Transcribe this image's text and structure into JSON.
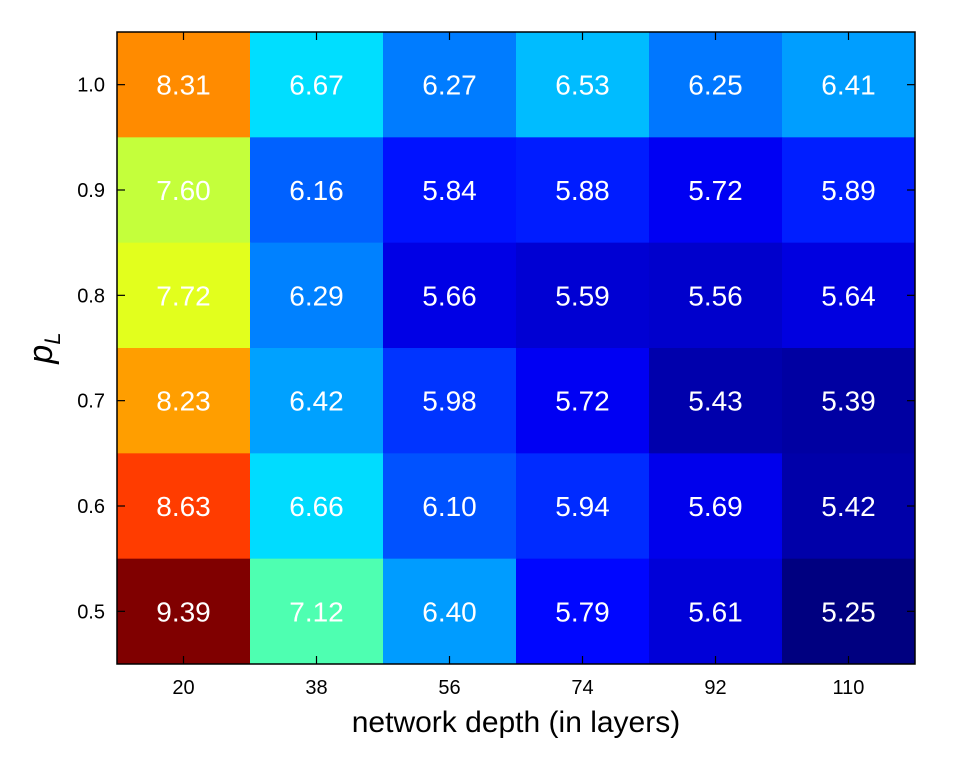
{
  "chart_data": {
    "type": "heatmap",
    "xlabel": "network depth (in layers)",
    "ylabel": {
      "main": "p",
      "subscript": "L"
    },
    "x_categories": [
      "20",
      "38",
      "56",
      "74",
      "92",
      "110"
    ],
    "y_categories": [
      "1.0",
      "0.9",
      "0.8",
      "0.7",
      "0.6",
      "0.5"
    ],
    "values": [
      [
        8.31,
        6.67,
        6.27,
        6.53,
        6.25,
        6.41
      ],
      [
        7.6,
        6.16,
        5.84,
        5.88,
        5.72,
        5.89
      ],
      [
        7.72,
        6.29,
        5.66,
        5.59,
        5.56,
        5.64
      ],
      [
        8.23,
        6.42,
        5.98,
        5.72,
        5.43,
        5.39
      ],
      [
        8.63,
        6.66,
        6.1,
        5.94,
        5.69,
        5.42
      ],
      [
        9.39,
        7.12,
        6.4,
        5.79,
        5.61,
        5.25
      ]
    ],
    "labels": [
      [
        "8.31",
        "6.67",
        "6.27",
        "6.53",
        "6.25",
        "6.41"
      ],
      [
        "7.60",
        "6.16",
        "5.84",
        "5.88",
        "5.72",
        "5.89"
      ],
      [
        "7.72",
        "6.29",
        "5.66",
        "5.59",
        "5.56",
        "5.64"
      ],
      [
        "8.23",
        "6.42",
        "5.98",
        "5.72",
        "5.43",
        "5.39"
      ],
      [
        "8.63",
        "6.66",
        "6.10",
        "5.94",
        "5.69",
        "5.42"
      ],
      [
        "9.39",
        "7.12",
        "6.40",
        "5.79",
        "5.61",
        "5.25"
      ]
    ],
    "colorscale": "jet",
    "color_range": [
      5.25,
      9.39
    ],
    "grid": false,
    "legend": "none"
  }
}
